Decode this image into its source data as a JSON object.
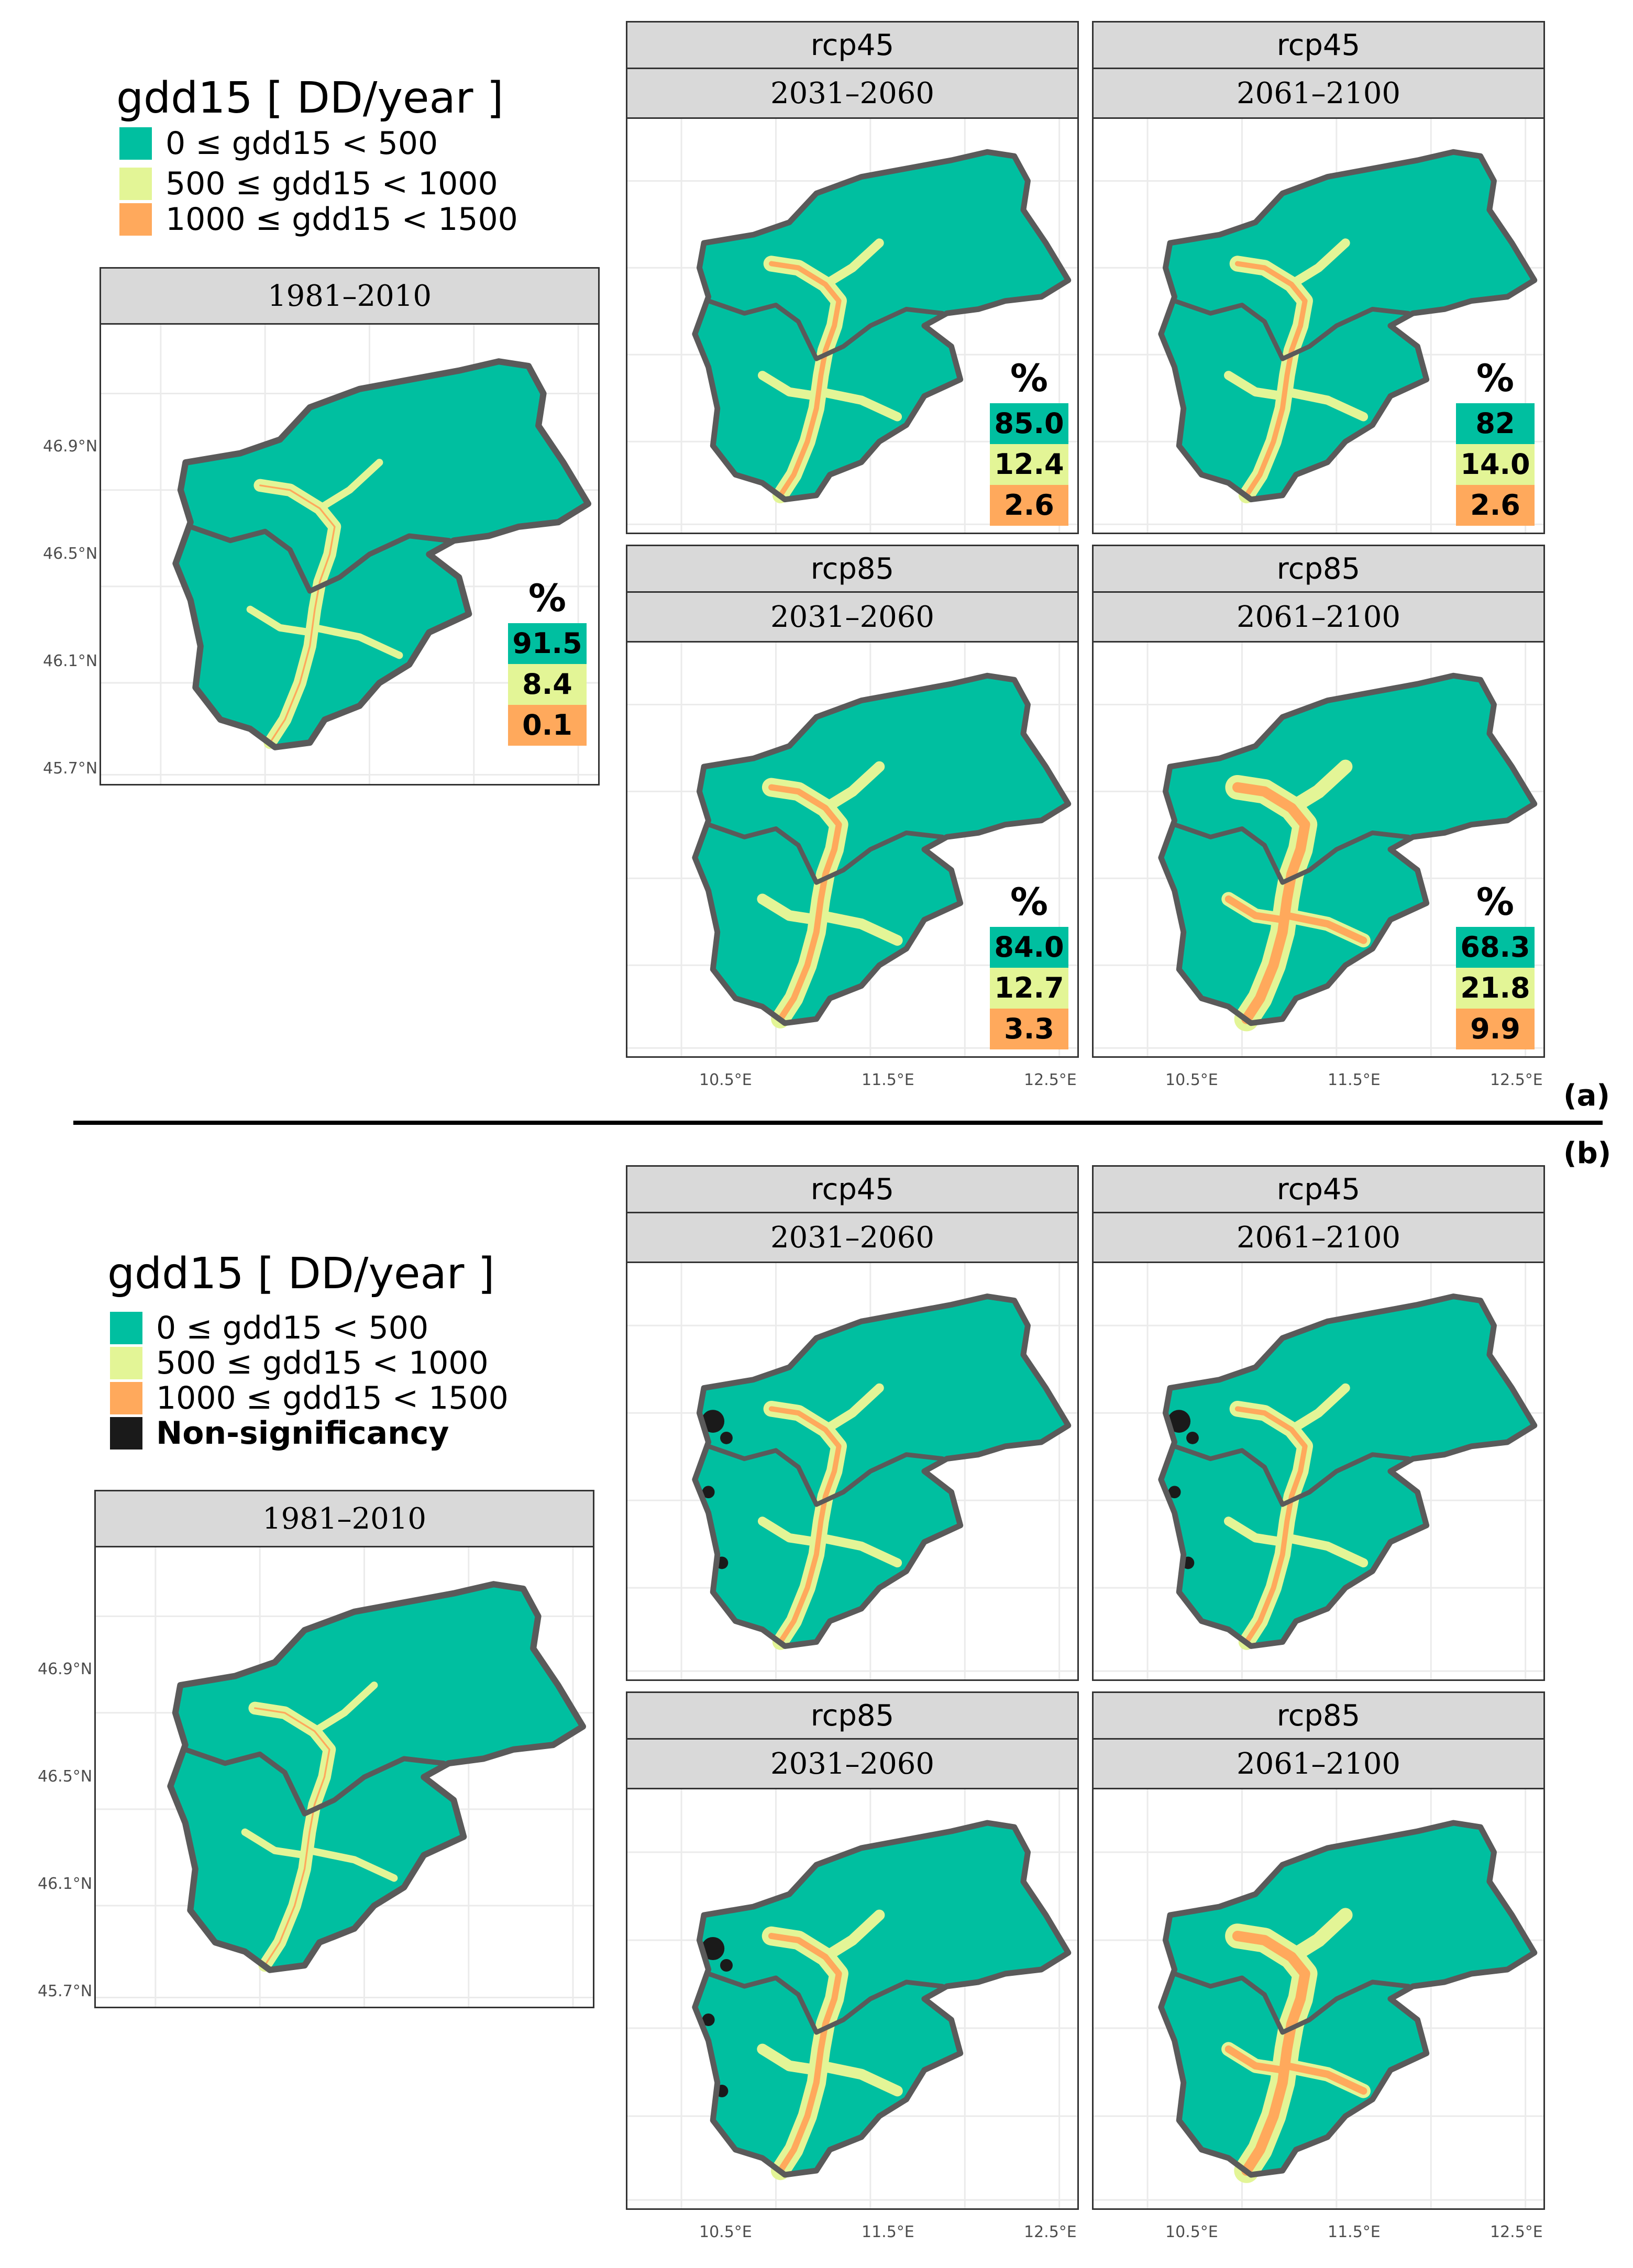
{
  "legend_title": "gdd15 [ DD/year ]",
  "classes": [
    {
      "label": "0 ≤ gdd15 < 500",
      "color": "#00bfa0"
    },
    {
      "label": "500 ≤ gdd15 < 1000",
      "color": "#e3f596"
    },
    {
      "label": "1000 ≤ gdd15 < 1500",
      "color": "#ffa95c"
    }
  ],
  "nonsig": {
    "label": "Non-significancy",
    "color": "#1a1a1a"
  },
  "pct_symbol": "%",
  "panel_labels": {
    "a": "(a)",
    "b": "(b)"
  },
  "lat_ticks": [
    "46.9°N",
    "46.5°N",
    "46.1°N",
    "45.7°N"
  ],
  "lon_ticks": [
    "10.5°E",
    "11.5°E",
    "12.5°E"
  ],
  "section_a": {
    "baseline": {
      "period": "1981–2010",
      "percentages": [
        "91.5",
        "8.4",
        "0.1"
      ]
    },
    "scenarios": [
      {
        "scenario": "rcp45",
        "period": "2031–2060",
        "percentages": [
          "85.0",
          "12.4",
          "2.6"
        ]
      },
      {
        "scenario": "rcp45",
        "period": "2061–2100",
        "percentages": [
          "82",
          "14.0",
          "2.6"
        ]
      },
      {
        "scenario": "rcp85",
        "period": "2031–2060",
        "percentages": [
          "84.0",
          "12.7",
          "3.3"
        ]
      },
      {
        "scenario": "rcp85",
        "period": "2061–2100",
        "percentages": [
          "68.3",
          "21.8",
          "9.9"
        ]
      }
    ]
  },
  "section_b": {
    "baseline": {
      "period": "1981–2010"
    },
    "scenarios": [
      {
        "scenario": "rcp45",
        "period": "2031–2060"
      },
      {
        "scenario": "rcp45",
        "period": "2061–2100"
      },
      {
        "scenario": "rcp85",
        "period": "2031–2060"
      },
      {
        "scenario": "rcp85",
        "period": "2061–2100"
      }
    ]
  },
  "gray_line_color": "#555555",
  "boundary_color": "#5a5a5a"
}
